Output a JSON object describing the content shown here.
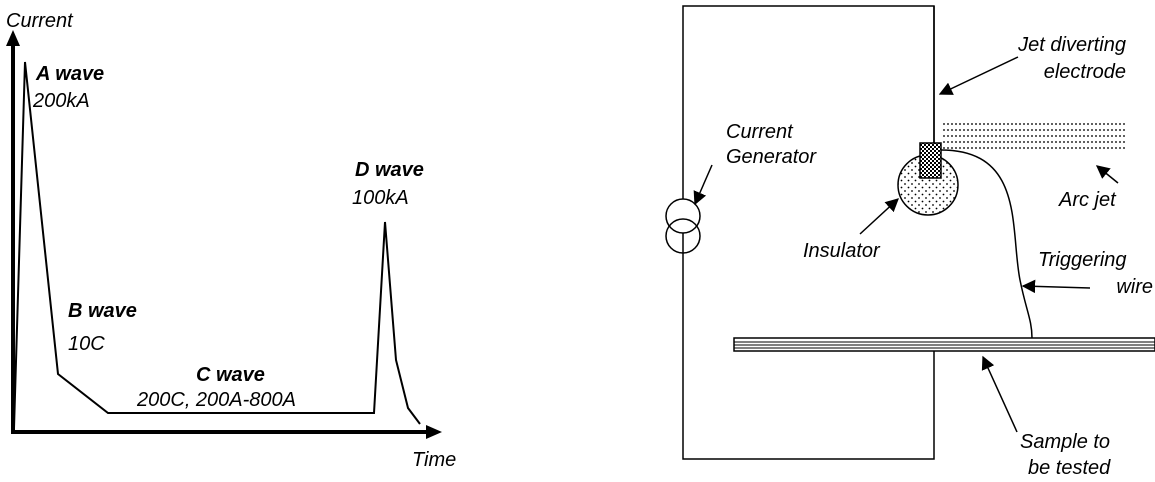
{
  "waveform": {
    "y_axis_label": "Current",
    "x_axis_label": "Time",
    "a_wave": {
      "title": "A wave",
      "value": "200kA"
    },
    "b_wave": {
      "title": "B wave",
      "value": "10C"
    },
    "c_wave": {
      "title": "C wave",
      "value": "200C, 200A-800A"
    },
    "d_wave": {
      "title": "D wave",
      "value": "100kA"
    }
  },
  "test_setup": {
    "current_generator": [
      "Current",
      "Generator"
    ],
    "jet_diverting_electrode": [
      "Jet diverting",
      "electrode"
    ],
    "insulator": "Insulator",
    "arc_jet": "Arc jet",
    "triggering_wire": [
      "Triggering",
      "wire"
    ],
    "sample": [
      "Sample to",
      "be tested"
    ]
  }
}
